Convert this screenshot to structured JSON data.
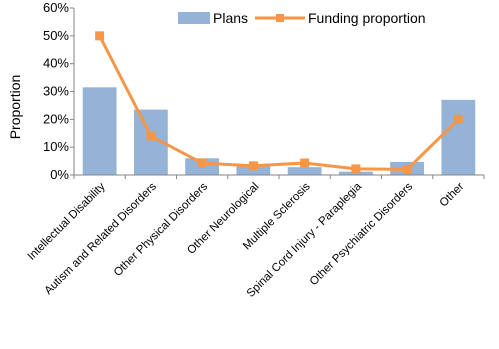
{
  "chart_data": {
    "type": "bar",
    "categories": [
      "Intellectual Disability",
      "Autism and Related Disorders",
      "Other Physical Disorders",
      "Other Neurological",
      "Multiple Sclerosis",
      "Spinal Cord Injury - Paraplegia",
      "Other Psychiatric Disorders",
      "Other"
    ],
    "series": [
      {
        "name": "Plans",
        "type": "bar",
        "color": "#95b3d7",
        "values": [
          31.5,
          23.5,
          6.0,
          3.8,
          2.8,
          1.2,
          4.7,
          27.0
        ]
      },
      {
        "name": "Funding proportion",
        "type": "line",
        "color": "#f79646",
        "values": [
          50.0,
          14.0,
          4.3,
          3.3,
          4.3,
          2.2,
          2.0,
          20.0
        ]
      }
    ],
    "ylabel": "Proportion",
    "ylim": [
      0,
      60
    ],
    "yticks": [
      "0%",
      "10%",
      "20%",
      "30%",
      "40%",
      "50%",
      "60%"
    ],
    "legend_position": "top-right",
    "grid": false
  }
}
